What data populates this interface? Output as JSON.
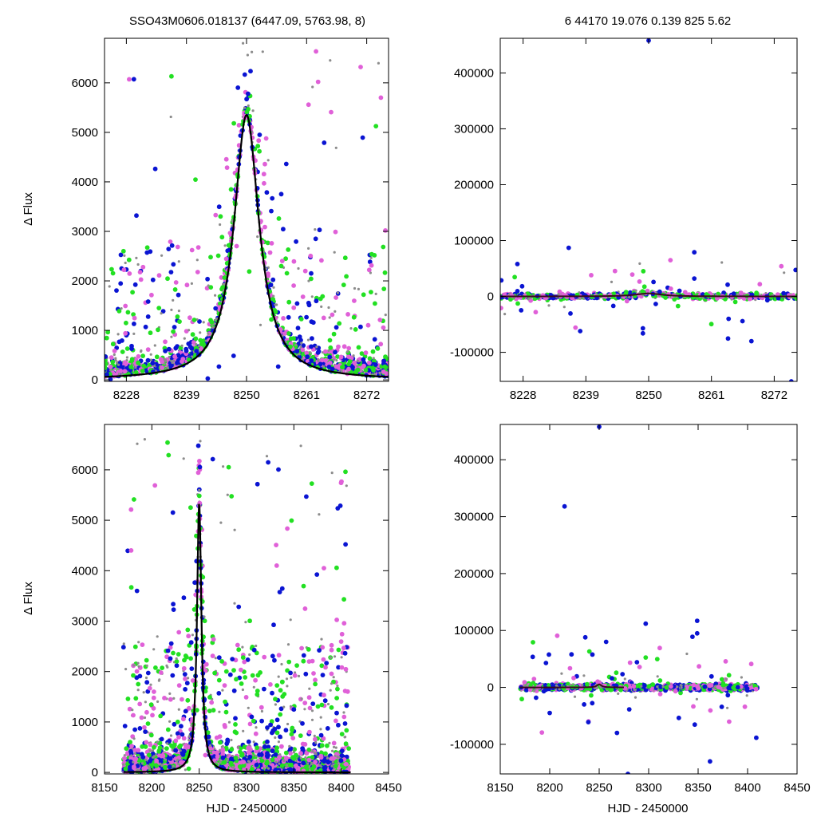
{
  "header": {
    "left": "SSO43M0606.018137 (6447.09, 5763.98,     8)",
    "right": "6   44170   19.076   0.139   825   5.62"
  },
  "colors": {
    "blue": "#0a14d2",
    "green": "#22e022",
    "magenta": "#e060d8",
    "gray": "#8c8c8c",
    "model": "#000000",
    "model_right": "#3a0a1e"
  },
  "chart_data": [
    {
      "type": "scatter",
      "id": "top-left",
      "title": "",
      "xlabel": "",
      "ylabel": "Δ Flux",
      "xlim": [
        8224,
        8276
      ],
      "ylim": [
        -30,
        6900
      ],
      "xticks": [
        8228,
        8239,
        8250,
        8261,
        8272
      ],
      "yticks": [
        0,
        1000,
        2000,
        3000,
        4000,
        5000,
        6000
      ],
      "series": [],
      "model": {
        "shape": "lorentzian",
        "t0": 8250.0,
        "peak": 5350,
        "hwhm": 2.8
      }
    },
    {
      "type": "scatter",
      "id": "top-right",
      "title": "",
      "xlabel": "",
      "ylabel": "",
      "xlim": [
        8224,
        8276
      ],
      "ylim": [
        -152000,
        462000
      ],
      "xticks": [
        8228,
        8239,
        8250,
        8261,
        8272
      ],
      "yticks": [
        -100000,
        0,
        100000,
        200000,
        300000,
        400000
      ],
      "series": [],
      "model": {
        "shape": "lorentzian",
        "t0": 8250.0,
        "peak": 5350,
        "hwhm": 2.8
      }
    },
    {
      "type": "scatter",
      "id": "bottom-left",
      "title": "",
      "xlabel": "HJD - 2450000",
      "ylabel": "Δ Flux",
      "xlim": [
        8150,
        8450
      ],
      "ylim": [
        -30,
        6900
      ],
      "xticks": [
        8150,
        8200,
        8250,
        8300,
        8350,
        8400,
        8450
      ],
      "yticks": [
        0,
        1000,
        2000,
        3000,
        4000,
        5000,
        6000
      ],
      "series": [],
      "model": {
        "shape": "lorentzian",
        "t0": 8250.0,
        "peak": 5350,
        "hwhm": 2.8
      }
    },
    {
      "type": "scatter",
      "id": "bottom-right",
      "title": "",
      "xlabel": "HJD - 2450000",
      "ylabel": "",
      "xlim": [
        8150,
        8450
      ],
      "ylim": [
        -152000,
        462000
      ],
      "xticks": [
        8150,
        8200,
        8250,
        8300,
        8350,
        8400,
        8450
      ],
      "yticks": [
        -100000,
        0,
        100000,
        200000,
        300000,
        400000
      ],
      "series": [],
      "model": {
        "shape": "lorentzian",
        "t0": 8250.0,
        "peak": 5350,
        "hwhm": 2.8
      }
    }
  ]
}
